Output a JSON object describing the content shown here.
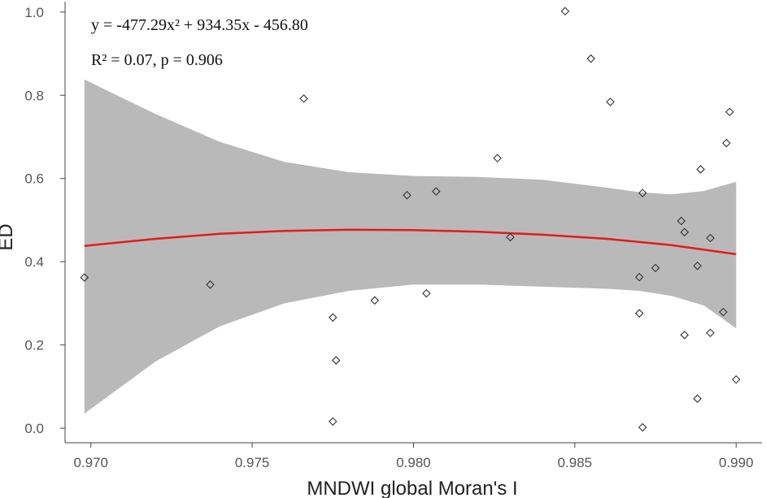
{
  "chart_data": {
    "type": "scatter",
    "title": "",
    "xlabel": "MNDWI global Moran's I",
    "ylabel": "ED",
    "xlim": [
      0.9692,
      0.9908
    ],
    "ylim": [
      -0.035,
      1.025
    ],
    "x_ticks": [
      0.97,
      0.975,
      0.98,
      0.985,
      0.99
    ],
    "x_tick_labels": [
      "0.970",
      "0.975",
      "0.980",
      "0.985",
      "0.990"
    ],
    "y_ticks": [
      0.0,
      0.2,
      0.4,
      0.6,
      0.8,
      1.0
    ],
    "y_tick_labels": [
      "0.0",
      "0.2",
      "0.4",
      "0.6",
      "0.8",
      "1.0"
    ],
    "grid": false,
    "annotations": [
      "y = -477.29x² + 934.35x - 456.80",
      "R² = 0.07,  p = 0.906"
    ],
    "points": [
      {
        "x": 0.9698,
        "y": 0.362
      },
      {
        "x": 0.9737,
        "y": 0.345
      },
      {
        "x": 0.9766,
        "y": 0.792
      },
      {
        "x": 0.9775,
        "y": 0.266
      },
      {
        "x": 0.9776,
        "y": 0.163
      },
      {
        "x": 0.9775,
        "y": 0.016
      },
      {
        "x": 0.9788,
        "y": 0.307
      },
      {
        "x": 0.9798,
        "y": 0.56
      },
      {
        "x": 0.9804,
        "y": 0.324
      },
      {
        "x": 0.9807,
        "y": 0.569
      },
      {
        "x": 0.9826,
        "y": 0.649
      },
      {
        "x": 0.983,
        "y": 0.459
      },
      {
        "x": 0.9847,
        "y": 1.002
      },
      {
        "x": 0.9855,
        "y": 0.888
      },
      {
        "x": 0.9861,
        "y": 0.784
      },
      {
        "x": 0.987,
        "y": 0.363
      },
      {
        "x": 0.987,
        "y": 0.276
      },
      {
        "x": 0.9871,
        "y": 0.565
      },
      {
        "x": 0.9871,
        "y": 0.002
      },
      {
        "x": 0.9875,
        "y": 0.385
      },
      {
        "x": 0.9883,
        "y": 0.498
      },
      {
        "x": 0.9884,
        "y": 0.471
      },
      {
        "x": 0.9884,
        "y": 0.224
      },
      {
        "x": 0.9888,
        "y": 0.39
      },
      {
        "x": 0.9888,
        "y": 0.071
      },
      {
        "x": 0.9889,
        "y": 0.622
      },
      {
        "x": 0.9892,
        "y": 0.457
      },
      {
        "x": 0.9892,
        "y": 0.229
      },
      {
        "x": 0.9896,
        "y": 0.279
      },
      {
        "x": 0.9897,
        "y": 0.685
      },
      {
        "x": 0.9898,
        "y": 0.76
      },
      {
        "x": 0.99,
        "y": 0.117
      }
    ],
    "fit": {
      "type": "quadratic",
      "coefficients": {
        "a": -477.29,
        "b": 934.35,
        "c": -456.8
      },
      "curve": [
        {
          "x": 0.9698,
          "y": 0.438
        },
        {
          "x": 0.972,
          "y": 0.455
        },
        {
          "x": 0.974,
          "y": 0.467
        },
        {
          "x": 0.976,
          "y": 0.474
        },
        {
          "x": 0.978,
          "y": 0.477
        },
        {
          "x": 0.98,
          "y": 0.476
        },
        {
          "x": 0.982,
          "y": 0.472
        },
        {
          "x": 0.984,
          "y": 0.465
        },
        {
          "x": 0.986,
          "y": 0.455
        },
        {
          "x": 0.988,
          "y": 0.44
        },
        {
          "x": 0.99,
          "y": 0.418
        }
      ],
      "ci_upper": [
        {
          "x": 0.9698,
          "y": 0.838
        },
        {
          "x": 0.972,
          "y": 0.755
        },
        {
          "x": 0.974,
          "y": 0.688
        },
        {
          "x": 0.976,
          "y": 0.64
        },
        {
          "x": 0.978,
          "y": 0.615
        },
        {
          "x": 0.98,
          "y": 0.606
        },
        {
          "x": 0.982,
          "y": 0.604
        },
        {
          "x": 0.984,
          "y": 0.597
        },
        {
          "x": 0.986,
          "y": 0.578
        },
        {
          "x": 0.987,
          "y": 0.567
        },
        {
          "x": 0.988,
          "y": 0.562
        },
        {
          "x": 0.989,
          "y": 0.57
        },
        {
          "x": 0.99,
          "y": 0.592
        }
      ],
      "ci_lower": [
        {
          "x": 0.9698,
          "y": 0.035
        },
        {
          "x": 0.972,
          "y": 0.16
        },
        {
          "x": 0.974,
          "y": 0.245
        },
        {
          "x": 0.976,
          "y": 0.3
        },
        {
          "x": 0.978,
          "y": 0.33
        },
        {
          "x": 0.98,
          "y": 0.345
        },
        {
          "x": 0.982,
          "y": 0.345
        },
        {
          "x": 0.984,
          "y": 0.34
        },
        {
          "x": 0.986,
          "y": 0.335
        },
        {
          "x": 0.987,
          "y": 0.33
        },
        {
          "x": 0.988,
          "y": 0.318
        },
        {
          "x": 0.989,
          "y": 0.295
        },
        {
          "x": 0.99,
          "y": 0.24
        }
      ]
    },
    "colors": {
      "fit_line": "#e41a1c",
      "ci_band": "#b9b9b9",
      "ci_band_light": "#cbcbcb",
      "points": "#333333",
      "axis": "#444444"
    }
  }
}
